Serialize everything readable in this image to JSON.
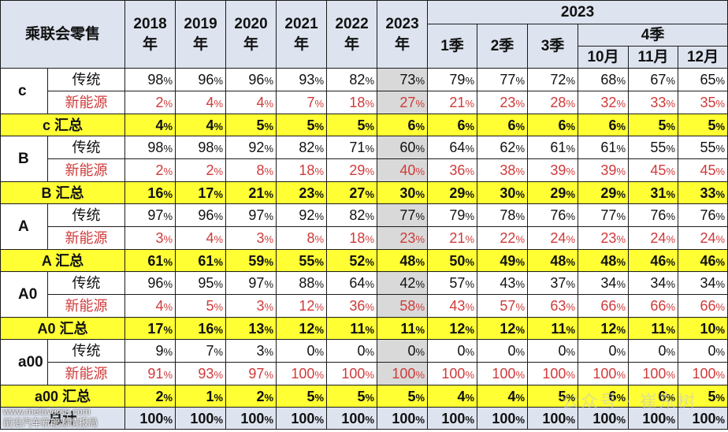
{
  "header": {
    "corner": "乘联会零售",
    "year_cols": [
      "2018\n年",
      "2019\n年",
      "2020\n年",
      "2021\n年",
      "2022\n年",
      "2023\n年"
    ],
    "group_2023": "2023",
    "q1": "1季",
    "q2": "2季",
    "q3": "3季",
    "q4": "4季",
    "months": [
      "10月",
      "11月",
      "12月"
    ]
  },
  "row_labels": {
    "traditional": "传统",
    "nev": "新能源"
  },
  "segments": [
    {
      "name": "c",
      "summary_label": "c 汇总",
      "traditional": [
        "98",
        "96",
        "96",
        "93",
        "82",
        "73",
        "79",
        "77",
        "72",
        "68",
        "67",
        "65"
      ],
      "nev": [
        "2",
        "4",
        "4",
        "7",
        "18",
        "27",
        "21",
        "23",
        "28",
        "32",
        "33",
        "35"
      ],
      "summary": [
        "4",
        "4",
        "5",
        "5",
        "5",
        "6",
        "6",
        "6",
        "6",
        "6",
        "5",
        "5"
      ]
    },
    {
      "name": "B",
      "summary_label": "B 汇总",
      "traditional": [
        "98",
        "98",
        "92",
        "82",
        "71",
        "60",
        "64",
        "62",
        "61",
        "61",
        "55",
        "55"
      ],
      "nev": [
        "2",
        "2",
        "8",
        "18",
        "29",
        "40",
        "36",
        "38",
        "39",
        "39",
        "45",
        "45"
      ],
      "summary": [
        "16",
        "17",
        "21",
        "23",
        "27",
        "30",
        "29",
        "30",
        "29",
        "29",
        "31",
        "33"
      ]
    },
    {
      "name": "A",
      "summary_label": "A 汇总",
      "traditional": [
        "97",
        "96",
        "97",
        "92",
        "82",
        "77",
        "79",
        "78",
        "76",
        "77",
        "76",
        "76"
      ],
      "nev": [
        "3",
        "4",
        "3",
        "8",
        "18",
        "23",
        "21",
        "22",
        "24",
        "23",
        "24",
        "24"
      ],
      "summary": [
        "61",
        "61",
        "59",
        "55",
        "52",
        "48",
        "50",
        "49",
        "48",
        "48",
        "46",
        "46"
      ]
    },
    {
      "name": "A0",
      "summary_label": "A0 汇总",
      "traditional": [
        "96",
        "95",
        "97",
        "88",
        "64",
        "42",
        "57",
        "43",
        "37",
        "34",
        "34",
        "34"
      ],
      "nev": [
        "4",
        "5",
        "3",
        "12",
        "36",
        "58",
        "43",
        "57",
        "63",
        "66",
        "66",
        "66"
      ],
      "summary": [
        "17",
        "16",
        "13",
        "12",
        "11",
        "11",
        "12",
        "12",
        "11",
        "12",
        "11",
        "10"
      ]
    },
    {
      "name": "a00",
      "summary_label": "a00 汇总",
      "traditional": [
        "9",
        "7",
        "3",
        "0",
        "0",
        "0",
        "0",
        "0",
        "0",
        "0",
        "0",
        "0"
      ],
      "nev": [
        "91",
        "93",
        "97",
        "100",
        "100",
        "100",
        "100",
        "100",
        "100",
        "100",
        "100",
        "100"
      ],
      "summary": [
        "2",
        "1",
        "2",
        "5",
        "5",
        "5",
        "4",
        "4",
        "5",
        "6",
        "6",
        "5"
      ]
    }
  ],
  "total": {
    "label": "总计",
    "values": [
      "100",
      "100",
      "100",
      "100",
      "100",
      "100",
      "100",
      "100",
      "100",
      "100",
      "100",
      "100"
    ]
  },
  "percent_sign": "%",
  "watermark": {
    "line1": "www.metaverse.com",
    "line2": "前沿汽车新能源情报局",
    "line3": "公众号 · 崔东树"
  },
  "colors": {
    "header_bg": "#dde3ef",
    "summary_bg": "#ffff33",
    "highlight_col_bg": "#d9d9d9",
    "nev_text": "#d03a3a"
  }
}
